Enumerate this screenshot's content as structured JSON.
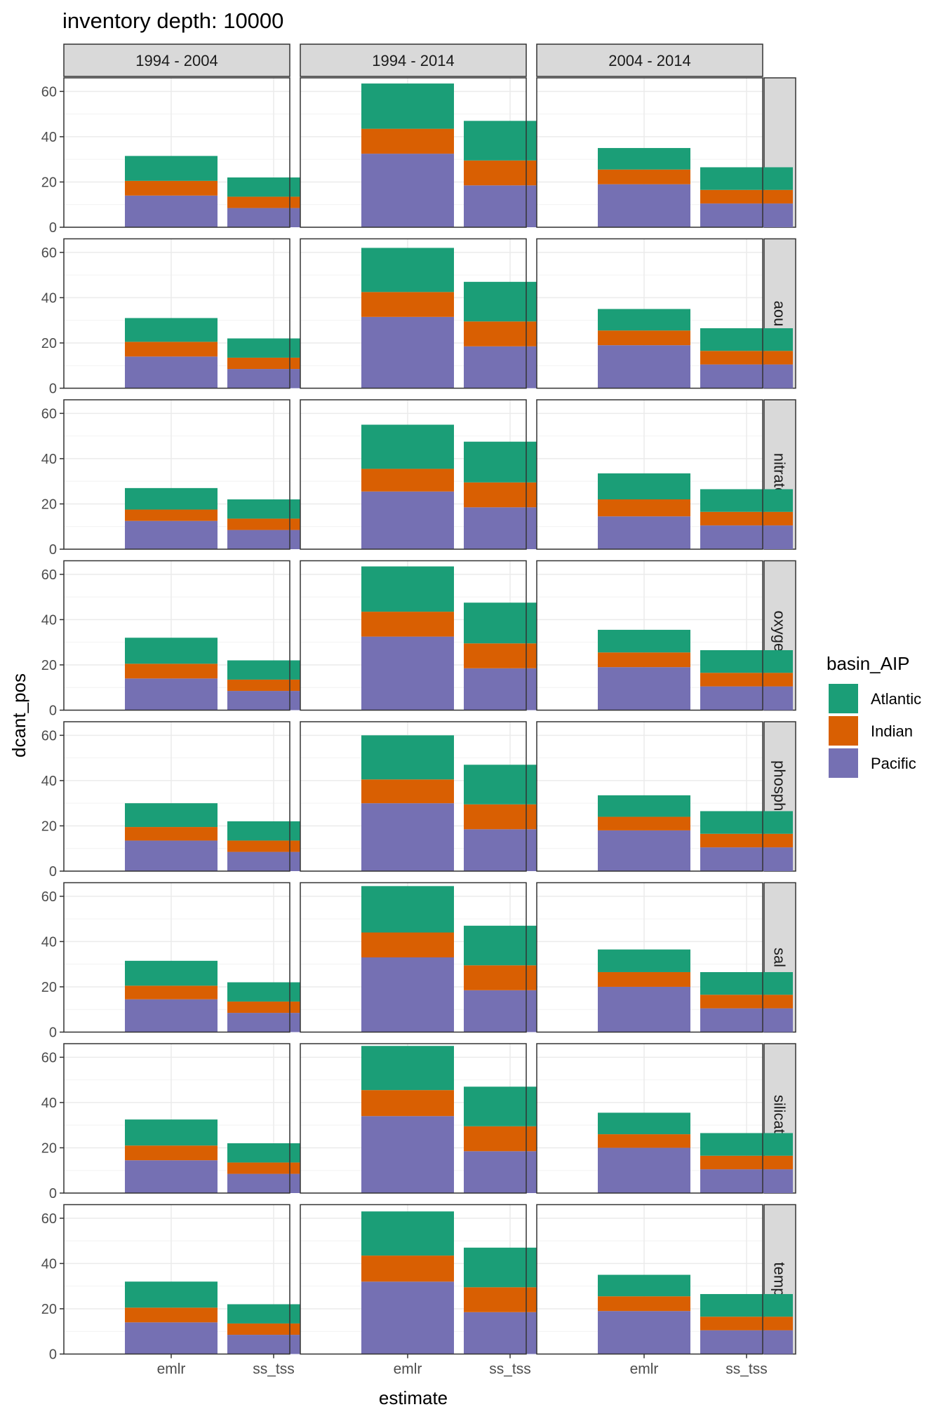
{
  "chart_data": {
    "type": "bar",
    "stacked": true,
    "title": "inventory depth: 10000",
    "xlabel": "estimate",
    "ylabel": "dcant_pos",
    "ylim": [
      0,
      66
    ],
    "yticks": [
      0,
      20,
      40,
      60
    ],
    "categories": [
      "emlr",
      "ss_tss"
    ],
    "facet_cols": [
      "1994 - 2004",
      "1994 - 2014",
      "2004 - 2014"
    ],
    "facet_rows": [
      "",
      "aou",
      "nitrate",
      "oxygen",
      "phosphate",
      "sal",
      "silicate",
      "temp"
    ],
    "legend": {
      "title": "basin_AIP",
      "position": "right",
      "entries": [
        {
          "name": "Atlantic",
          "color": "#1b9e77"
        },
        {
          "name": "Indian",
          "color": "#d95f02"
        },
        {
          "name": "Pacific",
          "color": "#7570b3"
        }
      ]
    },
    "stack_order_bottom_to_top": [
      "Pacific",
      "Indian",
      "Atlantic"
    ],
    "grid": true,
    "panels": [
      [
        {
          "emlr": {
            "Pacific": 14,
            "Indian": 6.5,
            "Atlantic": 11
          },
          "ss_tss": {
            "Pacific": 8.5,
            "Indian": 5,
            "Atlantic": 8.5
          }
        },
        {
          "emlr": {
            "Pacific": 32.5,
            "Indian": 11,
            "Atlantic": 20
          },
          "ss_tss": {
            "Pacific": 18.5,
            "Indian": 11,
            "Atlantic": 17.5
          }
        },
        {
          "emlr": {
            "Pacific": 19,
            "Indian": 6.5,
            "Atlantic": 9.5
          },
          "ss_tss": {
            "Pacific": 10.5,
            "Indian": 6,
            "Atlantic": 10
          }
        }
      ],
      [
        {
          "emlr": {
            "Pacific": 14,
            "Indian": 6.5,
            "Atlantic": 10.5
          },
          "ss_tss": {
            "Pacific": 8.5,
            "Indian": 5,
            "Atlantic": 8.5
          }
        },
        {
          "emlr": {
            "Pacific": 31.5,
            "Indian": 11,
            "Atlantic": 19.5
          },
          "ss_tss": {
            "Pacific": 18.5,
            "Indian": 11,
            "Atlantic": 17.5
          }
        },
        {
          "emlr": {
            "Pacific": 19,
            "Indian": 6.5,
            "Atlantic": 9.5
          },
          "ss_tss": {
            "Pacific": 10.5,
            "Indian": 6,
            "Atlantic": 10
          }
        }
      ],
      [
        {
          "emlr": {
            "Pacific": 12.5,
            "Indian": 5,
            "Atlantic": 9.5
          },
          "ss_tss": {
            "Pacific": 8.5,
            "Indian": 5,
            "Atlantic": 8.5
          }
        },
        {
          "emlr": {
            "Pacific": 25.5,
            "Indian": 10,
            "Atlantic": 19.5
          },
          "ss_tss": {
            "Pacific": 18.5,
            "Indian": 11,
            "Atlantic": 18
          }
        },
        {
          "emlr": {
            "Pacific": 14.5,
            "Indian": 7.5,
            "Atlantic": 11.5
          },
          "ss_tss": {
            "Pacific": 10.5,
            "Indian": 6,
            "Atlantic": 10
          }
        }
      ],
      [
        {
          "emlr": {
            "Pacific": 14,
            "Indian": 6.5,
            "Atlantic": 11.5
          },
          "ss_tss": {
            "Pacific": 8.5,
            "Indian": 5,
            "Atlantic": 8.5
          }
        },
        {
          "emlr": {
            "Pacific": 32.5,
            "Indian": 11,
            "Atlantic": 20
          },
          "ss_tss": {
            "Pacific": 18.5,
            "Indian": 11,
            "Atlantic": 18
          }
        },
        {
          "emlr": {
            "Pacific": 19,
            "Indian": 6.5,
            "Atlantic": 10
          },
          "ss_tss": {
            "Pacific": 10.5,
            "Indian": 6,
            "Atlantic": 10
          }
        }
      ],
      [
        {
          "emlr": {
            "Pacific": 13.5,
            "Indian": 6,
            "Atlantic": 10.5
          },
          "ss_tss": {
            "Pacific": 8.5,
            "Indian": 5,
            "Atlantic": 8.5
          }
        },
        {
          "emlr": {
            "Pacific": 30,
            "Indian": 10.5,
            "Atlantic": 19.5
          },
          "ss_tss": {
            "Pacific": 18.5,
            "Indian": 11,
            "Atlantic": 17.5
          }
        },
        {
          "emlr": {
            "Pacific": 18,
            "Indian": 6,
            "Atlantic": 9.5
          },
          "ss_tss": {
            "Pacific": 10.5,
            "Indian": 6,
            "Atlantic": 10
          }
        }
      ],
      [
        {
          "emlr": {
            "Pacific": 14.5,
            "Indian": 6,
            "Atlantic": 11
          },
          "ss_tss": {
            "Pacific": 8.5,
            "Indian": 5,
            "Atlantic": 8.5
          }
        },
        {
          "emlr": {
            "Pacific": 33,
            "Indian": 11,
            "Atlantic": 20.5
          },
          "ss_tss": {
            "Pacific": 18.5,
            "Indian": 11,
            "Atlantic": 17.5
          }
        },
        {
          "emlr": {
            "Pacific": 20,
            "Indian": 6.5,
            "Atlantic": 10
          },
          "ss_tss": {
            "Pacific": 10.5,
            "Indian": 6,
            "Atlantic": 10
          }
        }
      ],
      [
        {
          "emlr": {
            "Pacific": 14.5,
            "Indian": 6.5,
            "Atlantic": 11.5
          },
          "ss_tss": {
            "Pacific": 8.5,
            "Indian": 5,
            "Atlantic": 8.5
          }
        },
        {
          "emlr": {
            "Pacific": 34,
            "Indian": 11.5,
            "Atlantic": 19.5
          },
          "ss_tss": {
            "Pacific": 18.5,
            "Indian": 11,
            "Atlantic": 17.5
          }
        },
        {
          "emlr": {
            "Pacific": 20,
            "Indian": 6,
            "Atlantic": 9.5
          },
          "ss_tss": {
            "Pacific": 10.5,
            "Indian": 6,
            "Atlantic": 10
          }
        }
      ],
      [
        {
          "emlr": {
            "Pacific": 14,
            "Indian": 6.5,
            "Atlantic": 11.5
          },
          "ss_tss": {
            "Pacific": 8.5,
            "Indian": 5,
            "Atlantic": 8.5
          }
        },
        {
          "emlr": {
            "Pacific": 32,
            "Indian": 11.5,
            "Atlantic": 19.5
          },
          "ss_tss": {
            "Pacific": 18.5,
            "Indian": 11,
            "Atlantic": 17.5
          }
        },
        {
          "emlr": {
            "Pacific": 19,
            "Indian": 6.5,
            "Atlantic": 9.5
          },
          "ss_tss": {
            "Pacific": 10.5,
            "Indian": 6,
            "Atlantic": 10
          }
        }
      ]
    ]
  }
}
